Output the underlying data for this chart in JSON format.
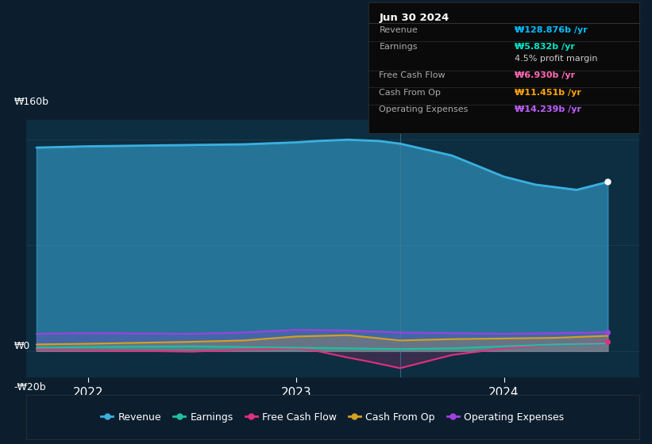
{
  "bg_color": "#0c1e2e",
  "plot_bg_color": "#0d2d40",
  "ylabel_top": "₩160b",
  "ylabel_zero": "₩0",
  "ylabel_bot": "-₩20b",
  "x_ticks": [
    2022,
    2023,
    2024
  ],
  "ylim_min": -20,
  "ylim_max": 175,
  "xmin": 2021.7,
  "xmax": 2024.65,
  "vline_x": 2023.5,
  "tooltip": {
    "title": "Jun 30 2024",
    "rows": [
      {
        "label": "Revenue",
        "value": "₩128.876b /yr",
        "value_color": "#00bfff",
        "divider": true
      },
      {
        "label": "Earnings",
        "value": "₩5.832b /yr",
        "value_color": "#00e5c8",
        "divider": false
      },
      {
        "label": "",
        "value": "4.5% profit margin",
        "value_color": "#cccccc",
        "divider": true
      },
      {
        "label": "Free Cash Flow",
        "value": "₩6.930b /yr",
        "value_color": "#ff69b4",
        "divider": true
      },
      {
        "label": "Cash From Op",
        "value": "₩11.451b /yr",
        "value_color": "#ffa500",
        "divider": true
      },
      {
        "label": "Operating Expenses",
        "value": "₩14.239b /yr",
        "value_color": "#bf5fff",
        "divider": true
      }
    ]
  },
  "series": {
    "revenue": {
      "color": "#3ab0e0",
      "fill_alpha": 0.55,
      "label": "Revenue",
      "x": [
        2021.75,
        2022.0,
        2022.25,
        2022.5,
        2022.75,
        2023.0,
        2023.1,
        2023.25,
        2023.4,
        2023.5,
        2023.75,
        2024.0,
        2024.15,
        2024.35,
        2024.5
      ],
      "y": [
        154,
        155,
        155.5,
        156,
        156.5,
        158,
        159,
        160,
        159,
        157,
        148,
        132,
        126,
        122,
        128
      ]
    },
    "op_expenses": {
      "color": "#a040e0",
      "fill_alpha": 0.25,
      "label": "Operating Expenses",
      "x": [
        2021.75,
        2022.0,
        2022.5,
        2022.75,
        2023.0,
        2023.25,
        2023.5,
        2023.75,
        2024.0,
        2024.25,
        2024.5
      ],
      "y": [
        13,
        13.5,
        13,
        14,
        16,
        15.5,
        14,
        13.5,
        13,
        13.5,
        14.2
      ]
    },
    "cash_from_op": {
      "color": "#d4a020",
      "fill_alpha": 0.25,
      "label": "Cash From Op",
      "x": [
        2021.75,
        2022.0,
        2022.5,
        2022.75,
        2023.0,
        2023.25,
        2023.5,
        2023.75,
        2024.0,
        2024.25,
        2024.5
      ],
      "y": [
        5,
        5.5,
        7,
        8,
        11,
        12,
        8,
        9,
        9.5,
        10,
        11.5
      ]
    },
    "free_cash_flow": {
      "color": "#e03080",
      "fill_alpha": 0.2,
      "label": "Free Cash Flow",
      "x": [
        2021.75,
        2022.0,
        2022.5,
        2022.75,
        2023.0,
        2023.1,
        2023.25,
        2023.35,
        2023.5,
        2023.75,
        2024.0,
        2024.25,
        2024.5
      ],
      "y": [
        1,
        0.5,
        -0.5,
        1,
        2,
        0,
        -5,
        -8,
        -13,
        -3,
        2,
        5,
        6.9
      ]
    },
    "earnings": {
      "color": "#20c0a0",
      "fill_alpha": 0.2,
      "label": "Earnings",
      "x": [
        2021.75,
        2022.0,
        2022.5,
        2022.75,
        2023.0,
        2023.25,
        2023.5,
        2023.75,
        2024.0,
        2024.25,
        2024.5
      ],
      "y": [
        2.5,
        3,
        3.5,
        3,
        2.5,
        2,
        1.5,
        2,
        3.5,
        5,
        5.8
      ]
    }
  },
  "legend": [
    {
      "label": "Revenue",
      "color": "#3ab0e0"
    },
    {
      "label": "Earnings",
      "color": "#20c0a0"
    },
    {
      "label": "Free Cash Flow",
      "color": "#e03080"
    },
    {
      "label": "Cash From Op",
      "color": "#d4a020"
    },
    {
      "label": "Operating Expenses",
      "color": "#a040e0"
    }
  ],
  "gridline_color": "#2a4a5e",
  "gridline_alpha": 0.6,
  "gridline_vals": [
    160,
    80,
    0,
    -20
  ],
  "vline_color": "#4a7a9a",
  "vline_alpha": 0.7
}
